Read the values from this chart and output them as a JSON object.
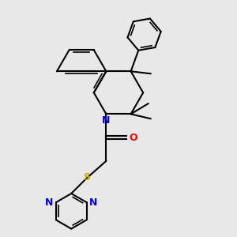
{
  "bg_color": "#e8e8e8",
  "bond_color": "#000000",
  "N_color": "#0000cc",
  "O_color": "#ff0000",
  "S_color": "#ccaa00",
  "lw": 1.5,
  "lw_inner": 1.2,
  "fig_size": [
    3.0,
    3.0
  ],
  "dpi": 100,
  "xlim": [
    0,
    10
  ],
  "ylim": [
    0,
    10
  ]
}
